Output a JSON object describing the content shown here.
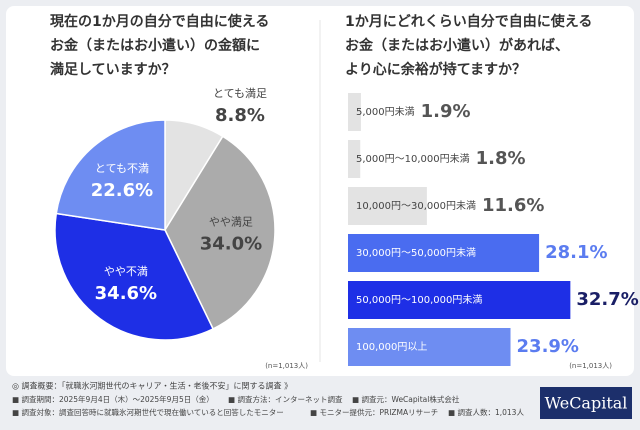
{
  "chart_data": [
    {
      "type": "pie",
      "title": [
        "現在の1か月の自分で自由に使える",
        "お金（またはお小遣い）の金額に",
        "満足していますか？"
      ],
      "categories": [
        "とても満足",
        "やや満足",
        "やや不満",
        "とても不満"
      ],
      "values": [
        8.8,
        34.0,
        34.6,
        22.6
      ],
      "value_labels": [
        "8.8%",
        "34.0%",
        "34.6%",
        "22.6%"
      ],
      "colors": [
        "#e3e3e3",
        "#ababab",
        "#1e2fe6",
        "#6e8df2"
      ],
      "note": "(n=1,013人)"
    },
    {
      "type": "bar",
      "title": [
        "1か月にどれくらい自分で自由に使える",
        "お金（またはお小遣い）があれば、",
        "より心に余裕が持てますか？"
      ],
      "categories": [
        "5,000円未満",
        "5,000円～10,000円未満",
        "10,000円～30,000円未満",
        "30,000円～50,000円未満",
        "50,000円～100,000円未満",
        "100,000円以上"
      ],
      "values": [
        1.9,
        1.8,
        11.6,
        28.1,
        32.7,
        23.9
      ],
      "value_labels": [
        "1.9%",
        "1.8%",
        "11.6%",
        "28.1%",
        "32.7%",
        "23.9%"
      ],
      "colors": [
        "#e3e3e3",
        "#e3e3e3",
        "#e3e3e3",
        "#4a6cf0",
        "#1e2fe6",
        "#6e8df2"
      ],
      "note": "(n=1,013人)"
    }
  ],
  "footer": {
    "summary": "◎ 調査概要：「就職氷河期世代のキャリア・生活・老後不安」に関する調査 》",
    "items": [
      [
        "■ 調査期間：2025年9月4日（木）～2025年9月5日（金）",
        "■ 調査方法：インターネット調査",
        "■ 調査元：WeCapital株式会社"
      ],
      [
        "■ 調査対象：調査回答時に就職氷河期世代で現在働いていると回答したモニター",
        "■ モニター提供元：PRIZMAリサーチ",
        "■ 調査人数：1,013人"
      ]
    ]
  },
  "logo": "WeCapital"
}
